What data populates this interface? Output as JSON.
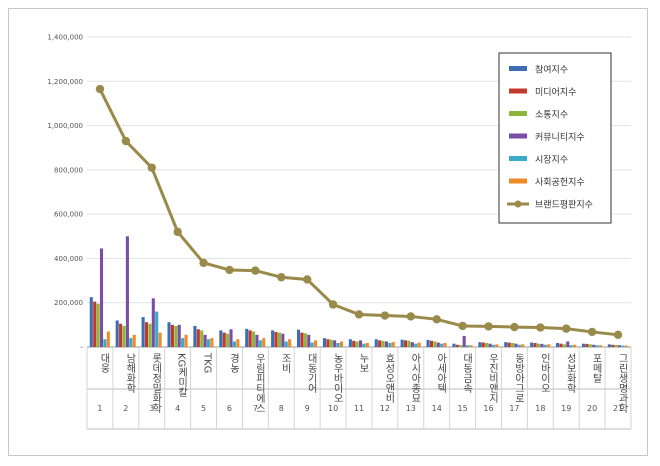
{
  "chart_data": {
    "type": "bar",
    "title": "",
    "xlabel": "",
    "ylabel": "",
    "ylim": [
      0,
      1400000
    ],
    "yticks": [
      0,
      200000,
      400000,
      600000,
      800000,
      1000000,
      1200000,
      1400000
    ],
    "ytick_labels": [
      "-",
      "200,000",
      "400,000",
      "600,000",
      "800,000",
      "1,000,000",
      "1,200,000",
      "1,400,000"
    ],
    "grid": true,
    "legend_position": "top-right",
    "categories": [
      "대웅",
      "남해화학",
      "롯데정밀화학",
      "KG케미칼",
      "TKG",
      "경농",
      "우림피티에스",
      "조비",
      "대동기어",
      "농우바이오",
      "누보",
      "효성오앤비",
      "아시아종묘",
      "아세아텍",
      "대동금속",
      "우진비앤지",
      "동방아그로",
      "인바이오",
      "성보화학",
      "포메탈",
      "그린생명과학"
    ],
    "index_labels": [
      "1",
      "2",
      "3",
      "4",
      "5",
      "6",
      "7",
      "8",
      "9",
      "10",
      "11",
      "12",
      "13",
      "14",
      "15",
      "16",
      "17",
      "18",
      "19",
      "20",
      "21"
    ],
    "series": [
      {
        "name": "참여지수",
        "kind": "bar",
        "color": "#3d6eb5",
        "values": [
          225000,
          120000,
          135000,
          112000,
          95000,
          75000,
          82000,
          75000,
          78000,
          40000,
          35000,
          35000,
          33000,
          32000,
          15000,
          22000,
          22000,
          20000,
          18000,
          15000,
          12000
        ]
      },
      {
        "name": "미디어지수",
        "kind": "bar",
        "color": "#c0392b",
        "values": [
          205000,
          105000,
          112000,
          100000,
          80000,
          65000,
          75000,
          68000,
          65000,
          35000,
          28000,
          30000,
          30000,
          28000,
          10000,
          20000,
          20000,
          18000,
          15000,
          14000,
          10000
        ]
      },
      {
        "name": "소통지수",
        "kind": "bar",
        "color": "#8db63c",
        "values": [
          195000,
          95000,
          105000,
          95000,
          75000,
          60000,
          70000,
          65000,
          62000,
          33000,
          25000,
          28000,
          28000,
          25000,
          8000,
          18000,
          18000,
          15000,
          12000,
          12000,
          9000
        ]
      },
      {
        "name": "커뮤니티지수",
        "kind": "bar",
        "color": "#7a4ea3",
        "values": [
          445000,
          500000,
          220000,
          100000,
          55000,
          80000,
          55000,
          60000,
          55000,
          30000,
          30000,
          25000,
          22000,
          20000,
          50000,
          15000,
          15000,
          14000,
          25000,
          10000,
          8000
        ]
      },
      {
        "name": "시장지수",
        "kind": "bar",
        "color": "#3ba9c9",
        "values": [
          35000,
          40000,
          160000,
          40000,
          35000,
          25000,
          30000,
          25000,
          20000,
          18000,
          15000,
          18000,
          15000,
          15000,
          8000,
          10000,
          10000,
          10000,
          8000,
          8000,
          6000
        ]
      },
      {
        "name": "사회공헌지수",
        "kind": "bar",
        "color": "#f08a24",
        "values": [
          70000,
          55000,
          65000,
          55000,
          40000,
          35000,
          40000,
          35000,
          30000,
          25000,
          18000,
          22000,
          20000,
          18000,
          8000,
          12000,
          12000,
          12000,
          10000,
          8000,
          6000
        ]
      },
      {
        "name": "브랜드평판지수",
        "kind": "line",
        "color": "#9a8a4a",
        "values": [
          1165000,
          930000,
          810000,
          520000,
          380000,
          348000,
          345000,
          315000,
          305000,
          192000,
          147000,
          142000,
          138000,
          125000,
          95000,
          93000,
          90000,
          88000,
          83000,
          68000,
          55000
        ]
      }
    ]
  }
}
